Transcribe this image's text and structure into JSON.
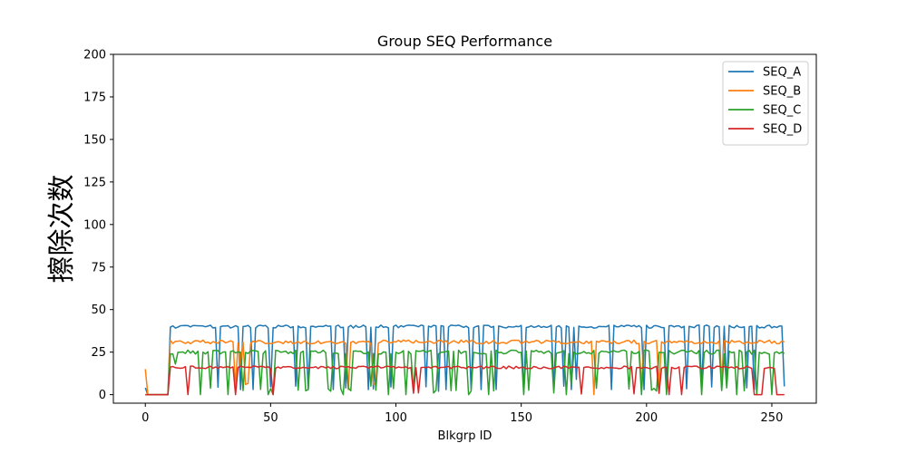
{
  "chart_data": {
    "type": "line",
    "title": "Group SEQ Performance",
    "xlabel": "Blkgrp ID",
    "ylabel": "擦除次数",
    "xlim": [
      -12.75,
      267.75
    ],
    "ylim": [
      -5,
      200
    ],
    "xticks": [
      0,
      50,
      100,
      150,
      200,
      250
    ],
    "yticks": [
      0,
      25,
      50,
      75,
      100,
      125,
      150,
      175,
      200
    ],
    "grid": false,
    "legend_position": "top-right",
    "n_points": 256,
    "series": [
      {
        "name": "SEQ_A",
        "color": "#1f77b4",
        "base": 40,
        "amplitude": 0.9,
        "low_value": 3,
        "low_prob": 0.07,
        "segments": [
          {
            "start": 0,
            "end": 0,
            "value": 4
          },
          {
            "start": 1,
            "end": 9,
            "value": 0
          }
        ],
        "dips": [
          [
            38,
            3
          ],
          [
            43,
            3
          ],
          [
            60,
            5
          ],
          [
            65,
            3
          ],
          [
            75,
            3
          ],
          [
            80,
            4
          ],
          [
            89,
            3
          ],
          [
            117,
            2
          ],
          [
            120,
            3
          ],
          [
            134,
            3
          ],
          [
            140,
            3
          ],
          [
            151,
            1
          ],
          [
            163,
            3
          ],
          [
            167,
            5
          ],
          [
            170,
            3
          ],
          [
            172,
            9
          ],
          [
            186,
            3
          ],
          [
            199,
            3
          ],
          [
            208,
            3
          ],
          [
            230,
            3
          ],
          [
            232,
            5
          ],
          [
            240,
            4
          ],
          [
            243,
            3
          ]
        ]
      },
      {
        "name": "SEQ_B",
        "color": "#ff7f0e",
        "base": 31,
        "amplitude": 1.1,
        "low_value": 5,
        "low_prob": 0.015,
        "segments": [
          {
            "start": 0,
            "end": 0,
            "value": 15
          },
          {
            "start": 1,
            "end": 9,
            "value": 0
          }
        ],
        "dips": [
          [
            36,
            5
          ],
          [
            38,
            17
          ],
          [
            40,
            6
          ],
          [
            81,
            3
          ],
          [
            179,
            0
          ],
          [
            205,
            5
          ],
          [
            230,
            6
          ]
        ]
      },
      {
        "name": "SEQ_C",
        "color": "#2ca02c",
        "base": 25,
        "amplitude": 1.2,
        "low_value": 2,
        "low_prob": 0.12,
        "segments": [
          {
            "start": 0,
            "end": 0,
            "value": 0
          },
          {
            "start": 1,
            "end": 9,
            "value": 0
          }
        ],
        "dips": [
          [
            12,
            18
          ],
          [
            22,
            0
          ],
          [
            33,
            0
          ],
          [
            49,
            0
          ],
          [
            51,
            0
          ],
          [
            65,
            3
          ],
          [
            74,
            2
          ],
          [
            79,
            0
          ],
          [
            90,
            5
          ],
          [
            97,
            0
          ],
          [
            104,
            0
          ],
          [
            115,
            1
          ],
          [
            129,
            0
          ],
          [
            137,
            0
          ],
          [
            151,
            0
          ],
          [
            163,
            1
          ],
          [
            168,
            0
          ],
          [
            170,
            6
          ],
          [
            198,
            0
          ],
          [
            208,
            0
          ],
          [
            222,
            0
          ],
          [
            236,
            0
          ],
          [
            244,
            0
          ],
          [
            250,
            0
          ]
        ]
      },
      {
        "name": "SEQ_D",
        "color": "#d62728",
        "base": 16,
        "amplitude": 0.8,
        "low_value": 0,
        "low_prob": 0.025,
        "segments": [
          {
            "start": 0,
            "end": 9,
            "value": 0
          },
          {
            "start": 243,
            "end": 246,
            "value": 0
          }
        ],
        "dips": [
          [
            17,
            0
          ],
          [
            36,
            0
          ],
          [
            51,
            0
          ],
          [
            209,
            0
          ],
          [
            214,
            0
          ],
          [
            252,
            0
          ],
          [
            253,
            0
          ],
          [
            254,
            0
          ],
          [
            255,
            0
          ]
        ]
      }
    ]
  }
}
